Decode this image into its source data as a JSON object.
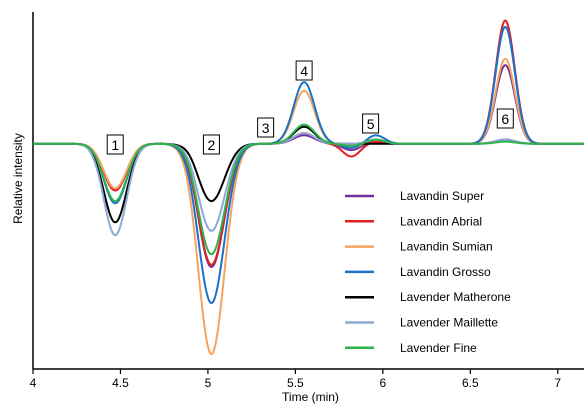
{
  "chart_data": {
    "type": "line",
    "title": "",
    "xlabel": "Time (min)",
    "ylabel": "Relative intensity",
    "xlim": [
      4,
      7.15
    ],
    "ylim": [
      -1.06,
      0.62
    ],
    "x_ticks": [
      "4",
      "4.5",
      "5",
      "5.5",
      "6",
      "6.5",
      "7"
    ],
    "y_ticks_shown": false,
    "grid": false,
    "legend_position": "lower-right",
    "series": [
      {
        "name": "Lavandin Super",
        "color": "#7030a0",
        "dips": [
          0.22,
          0.58,
          0.03
        ],
        "peaks": [
          0.04,
          0.01,
          0.37
        ]
      },
      {
        "name": "Lavandin Abrial",
        "color": "#e02020",
        "dips": [
          0.22,
          0.57,
          0.06
        ],
        "peaks": [
          0.05,
          0.01,
          0.58
        ]
      },
      {
        "name": "Lavandin Sumian",
        "color": "#f4a460",
        "dips": [
          0.21,
          0.99,
          0.02
        ],
        "peaks": [
          0.25,
          0.02,
          0.4
        ]
      },
      {
        "name": "Lavandin Grosso",
        "color": "#1a73c9",
        "dips": [
          0.28,
          0.75,
          0.02
        ],
        "peaks": [
          0.29,
          0.04,
          0.55
        ]
      },
      {
        "name": "Lavender Matherone",
        "color": "#000000",
        "dips": [
          0.37,
          0.27,
          0.0
        ],
        "peaks": [
          0.08,
          0.0,
          0.02
        ]
      },
      {
        "name": "Lavender Maillette",
        "color": "#8fa8d8",
        "dips": [
          0.43,
          0.41,
          0.0
        ],
        "peaks": [
          0.05,
          0.02,
          0.02
        ]
      },
      {
        "name": "Lavender Fine",
        "color": "#2db34a",
        "dips": [
          0.27,
          0.52,
          0.01
        ],
        "peaks": [
          0.09,
          0.02,
          0.01
        ]
      }
    ],
    "peak_labels": [
      {
        "label": "1",
        "x": 4.47
      },
      {
        "label": "2",
        "x": 5.02
      },
      {
        "label": "3",
        "x": 5.33
      },
      {
        "label": "4",
        "x": 5.55
      },
      {
        "label": "5",
        "x": 5.93
      },
      {
        "label": "6",
        "x": 6.7
      }
    ]
  }
}
